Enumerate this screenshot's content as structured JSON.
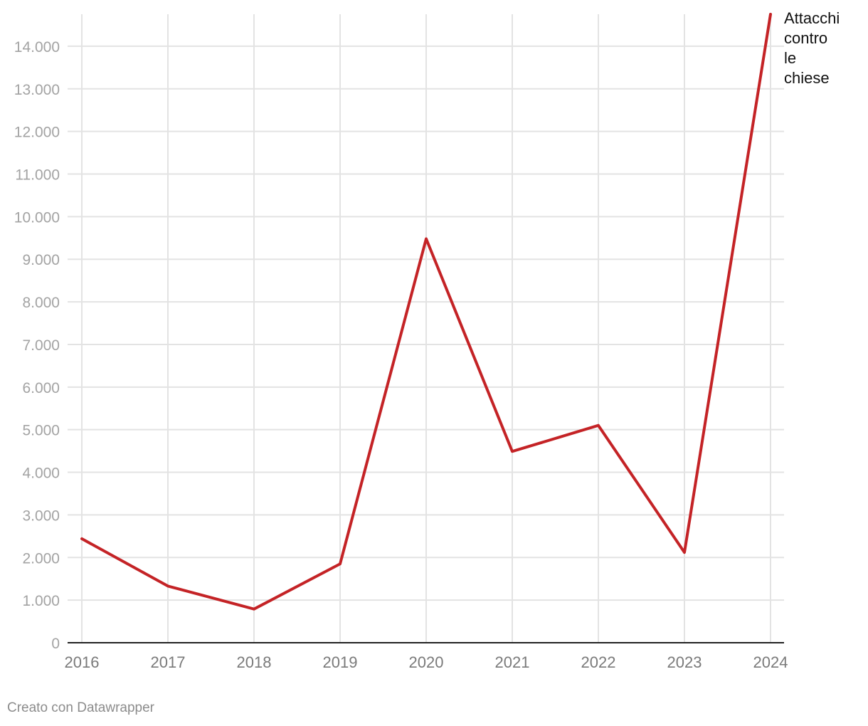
{
  "chart_data": {
    "type": "line",
    "x": [
      "2016",
      "2017",
      "2018",
      "2019",
      "2020",
      "2021",
      "2022",
      "2023",
      "2024"
    ],
    "series": [
      {
        "name": "Attacchi contro le chiese",
        "name_lines": [
          "Attacchi",
          "contro",
          "le",
          "chiese"
        ],
        "color": "#c42326",
        "values": [
          2440,
          1330,
          790,
          1850,
          9480,
          4490,
          5100,
          2120,
          14750
        ]
      }
    ],
    "yticks": [
      0,
      1000,
      2000,
      3000,
      4000,
      5000,
      6000,
      7000,
      8000,
      9000,
      10000,
      11000,
      12000,
      13000,
      14000
    ],
    "ytick_labels": [
      "0",
      "1.000",
      "2.000",
      "3.000",
      "4.000",
      "5.000",
      "6.000",
      "7.000",
      "8.000",
      "9.000",
      "10.000",
      "11.000",
      "12.000",
      "13.000",
      "14.000"
    ],
    "ylim": [
      0,
      14750
    ],
    "grid": true,
    "title": "",
    "xlabel": "",
    "ylabel": ""
  },
  "footer": {
    "credit": "Creato con Datawrapper"
  }
}
